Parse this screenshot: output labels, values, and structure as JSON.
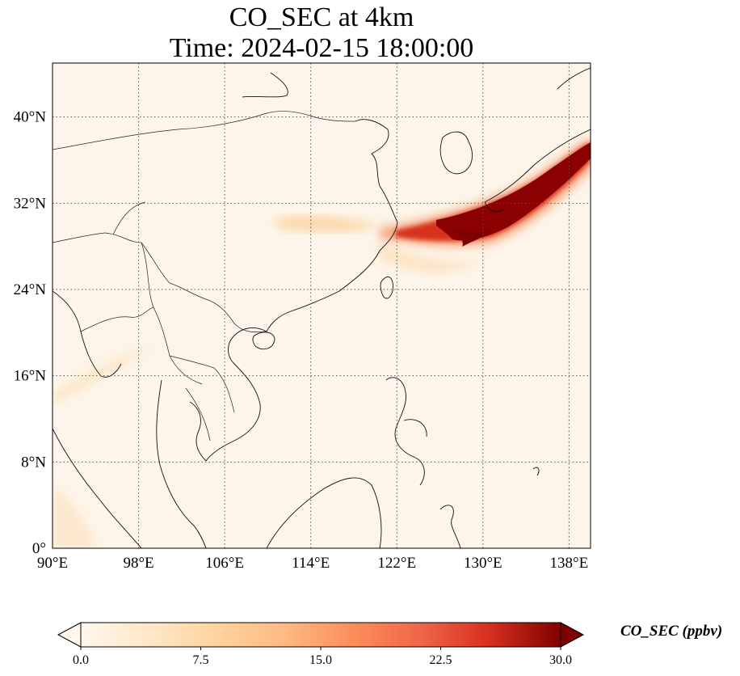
{
  "title": {
    "line1": "CO_SEC at 4km",
    "line2": "Time: 2024-02-15 18:00:00"
  },
  "map": {
    "lon_range": [
      90,
      140
    ],
    "lat_range": [
      0,
      45
    ],
    "lon_ticks": [
      "90°E",
      "98°E",
      "106°E",
      "114°E",
      "122°E",
      "130°E",
      "138°E"
    ],
    "lat_ticks": [
      "0°",
      "8°N",
      "16°N",
      "24°N",
      "32°N",
      "40°N"
    ],
    "gridlines": true,
    "gridline_style": "dotted",
    "background_color": "#fdf5e9",
    "coastline_color": "#000000",
    "features": [
      "coastlines",
      "country borders"
    ]
  },
  "colorbar": {
    "label": "CO_SEC (ppbv)",
    "min": 0.0,
    "max": 30.0,
    "tick_labels": [
      "0.0",
      "7.5",
      "15.0",
      "22.5",
      "30.0"
    ],
    "extend": "both",
    "colormap": "OrRd",
    "colors": [
      "#fff7ec",
      "#fdd49e",
      "#fdbb84",
      "#fc8d59",
      "#ef6548",
      "#d7301f",
      "#b30000",
      "#7f0000"
    ]
  }
}
